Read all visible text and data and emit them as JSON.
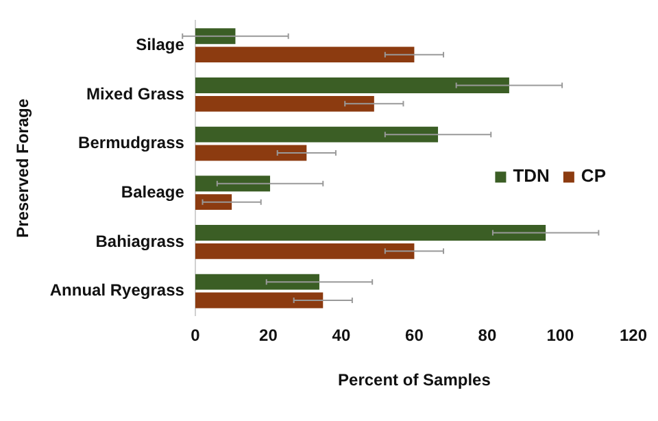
{
  "chart_data": {
    "type": "bar",
    "orientation": "horizontal",
    "xlabel": "Percent of Samples",
    "ylabel": "Preserved Forage",
    "categories": [
      "Silage",
      "Mixed Grass",
      "Bermudgrass",
      "Baleage",
      "Bahiagrass",
      "Annual Ryegrass"
    ],
    "series": [
      {
        "name": "TDN",
        "color": "#3b5e25",
        "values": [
          11,
          86,
          66.5,
          20.5,
          96,
          34
        ],
        "errors": [
          14.5,
          14.5,
          14.5,
          14.5,
          14.5,
          14.5
        ]
      },
      {
        "name": "CP",
        "color": "#8c3b10",
        "values": [
          60,
          49,
          30.5,
          10,
          60,
          35
        ],
        "errors": [
          8,
          8,
          8,
          8,
          8,
          8
        ]
      }
    ],
    "xlim": [
      0,
      120
    ],
    "xticks": [
      0,
      20,
      40,
      60,
      80,
      100,
      120
    ],
    "grid": false,
    "legend": "right"
  }
}
